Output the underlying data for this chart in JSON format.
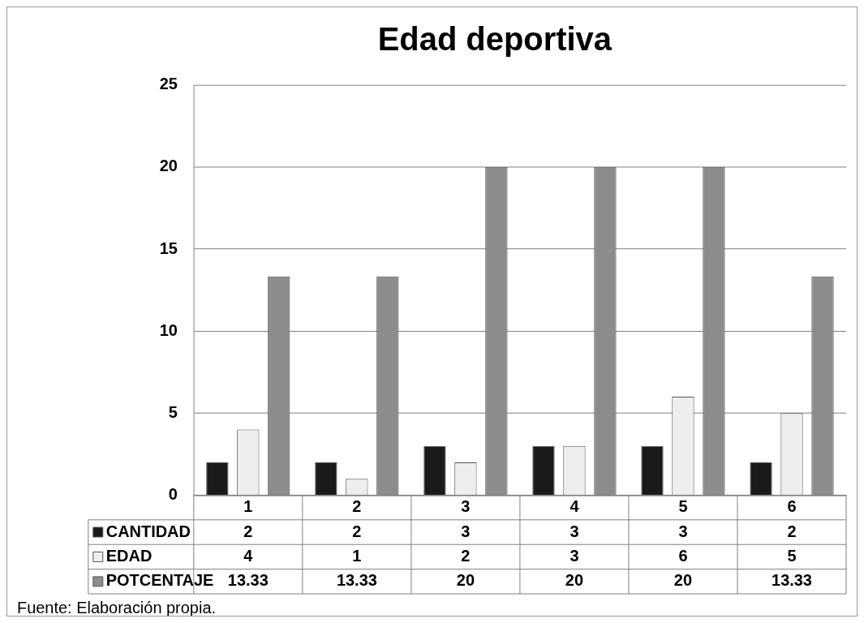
{
  "chart_data": {
    "type": "bar",
    "title": "Edad deportiva",
    "categories": [
      "1",
      "2",
      "3",
      "4",
      "5",
      "6"
    ],
    "series": [
      {
        "name": "CANTIDAD",
        "color": "#1a1a1a",
        "values": [
          2,
          2,
          3,
          3,
          3,
          2
        ]
      },
      {
        "name": "EDAD",
        "color": "#eeeeee",
        "values": [
          4,
          1,
          2,
          3,
          6,
          5
        ]
      },
      {
        "name": "POTCENTAJE",
        "color": "#8c8c8c",
        "values": [
          13.33,
          13.33,
          20,
          20,
          20,
          13.33
        ]
      }
    ],
    "ylim": [
      0,
      25
    ],
    "yticks": [
      0,
      5,
      10,
      15,
      20,
      25
    ],
    "grid": "y",
    "legend": "bottom",
    "data_labels": true,
    "annotations": [
      "Fuente: Elaboración propia."
    ]
  }
}
